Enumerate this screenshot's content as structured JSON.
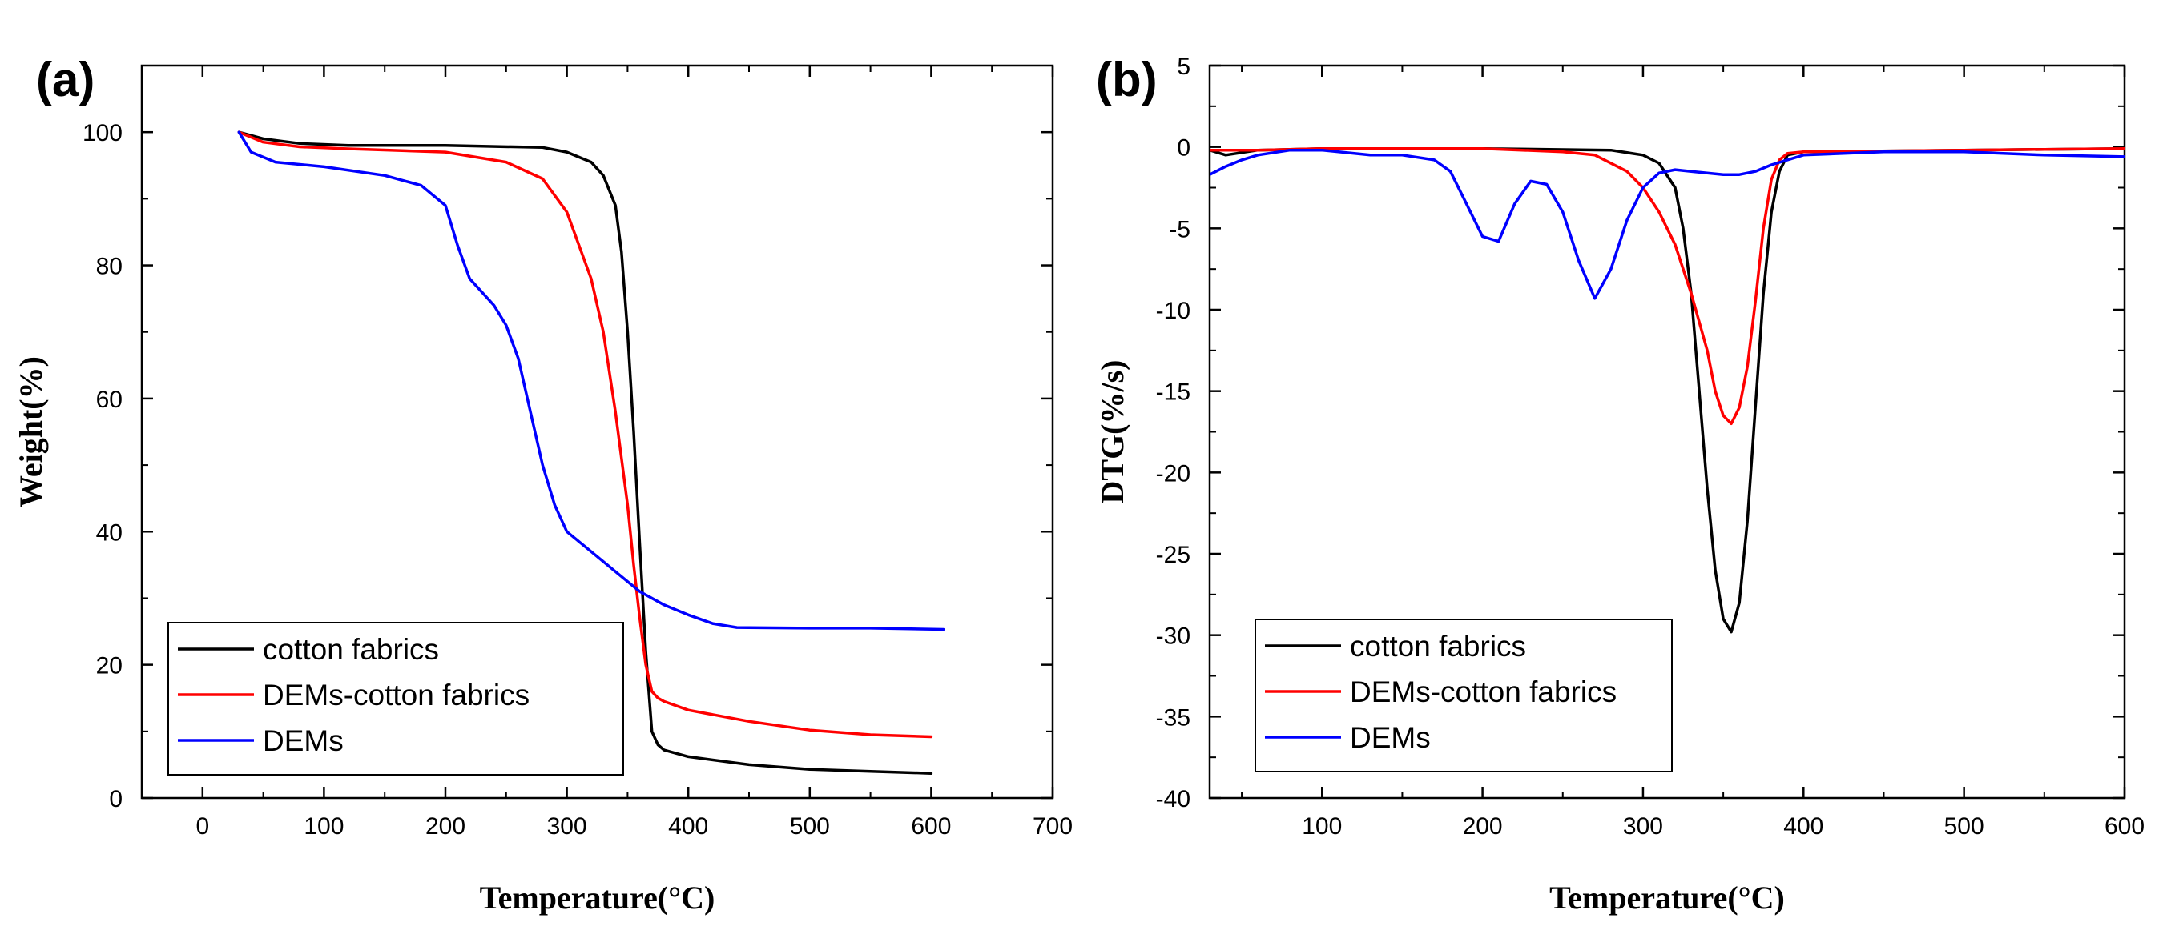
{
  "chart_data": [
    {
      "panel_label": "(a)",
      "type": "line",
      "title": "",
      "xlabel": "Temperature(°C)",
      "ylabel": "Weight(%)",
      "xlim": [
        -50,
        700
      ],
      "ylim": [
        0,
        110
      ],
      "x_ticks": [
        0,
        100,
        200,
        300,
        400,
        500,
        600,
        700
      ],
      "y_ticks": [
        0,
        20,
        40,
        60,
        80,
        100
      ],
      "x_tick_labels": [
        "0",
        "100",
        "200",
        "300",
        "400",
        "500",
        "600",
        "700"
      ],
      "y_tick_labels": [
        "0",
        "20",
        "40",
        "60",
        "80",
        "100"
      ],
      "legend_position": "bottom-left",
      "series": [
        {
          "name": "cotton fabrics",
          "color": "#000000",
          "x": [
            30,
            50,
            80,
            120,
            200,
            280,
            300,
            320,
            330,
            340,
            345,
            350,
            355,
            360,
            365,
            370,
            375,
            380,
            400,
            450,
            500,
            550,
            600
          ],
          "y": [
            100,
            99,
            98.3,
            98,
            98,
            97.7,
            97,
            95.5,
            93.5,
            89,
            82,
            70,
            55,
            38,
            22,
            10,
            8,
            7.2,
            6.2,
            5,
            4.3,
            4,
            3.7
          ]
        },
        {
          "name": "DEMs-cotton fabrics",
          "color": "#ff0000",
          "x": [
            30,
            50,
            80,
            120,
            200,
            250,
            280,
            300,
            320,
            330,
            340,
            350,
            355,
            360,
            365,
            370,
            375,
            380,
            400,
            450,
            500,
            550,
            600
          ],
          "y": [
            100,
            98.5,
            97.8,
            97.5,
            97,
            95.5,
            93,
            88,
            78,
            70,
            58,
            44,
            35,
            27,
            20,
            16,
            15,
            14.5,
            13.2,
            11.5,
            10.2,
            9.5,
            9.2
          ]
        },
        {
          "name": "DEMs",
          "color": "#0000ff",
          "x": [
            30,
            40,
            60,
            100,
            150,
            180,
            200,
            210,
            220,
            240,
            250,
            260,
            270,
            280,
            290,
            300,
            320,
            340,
            360,
            380,
            400,
            420,
            440,
            500,
            550,
            610
          ],
          "y": [
            100,
            97,
            95.5,
            94.8,
            93.5,
            92,
            89,
            83,
            78,
            74,
            71,
            66,
            58,
            50,
            44,
            40,
            37,
            34,
            31,
            29,
            27.5,
            26.2,
            25.6,
            25.5,
            25.5,
            25.3
          ]
        }
      ]
    },
    {
      "panel_label": "(b)",
      "type": "line",
      "title": "",
      "xlabel": "Temperature(°C)",
      "ylabel": "DTG(%/s)",
      "xlim": [
        30,
        600
      ],
      "ylim": [
        -40,
        5
      ],
      "x_ticks": [
        100,
        200,
        300,
        400,
        500,
        600
      ],
      "y_ticks": [
        5,
        0,
        -5,
        -10,
        -15,
        -20,
        -25,
        -30,
        -35,
        -40
      ],
      "x_tick_labels": [
        "100",
        "200",
        "300",
        "400",
        "500",
        "600"
      ],
      "y_tick_labels": [
        "5",
        "0",
        "-5",
        "-10",
        "-15",
        "-20",
        "-25",
        "-30",
        "-35",
        "-40"
      ],
      "legend_position": "bottom-left",
      "series": [
        {
          "name": "cotton fabrics",
          "color": "#000000",
          "x": [
            30,
            40,
            60,
            100,
            200,
            280,
            300,
            310,
            320,
            325,
            330,
            335,
            340,
            345,
            350,
            355,
            360,
            365,
            370,
            375,
            380,
            385,
            390,
            400,
            500,
            600
          ],
          "y": [
            -0.2,
            -0.5,
            -0.2,
            -0.1,
            -0.1,
            -0.2,
            -0.5,
            -1,
            -2.5,
            -5,
            -9,
            -15,
            -21,
            -26,
            -29,
            -29.8,
            -28,
            -23,
            -16,
            -9,
            -4,
            -1.5,
            -0.5,
            -0.3,
            -0.2,
            -0.1
          ],
          "min_label": "-30"
        },
        {
          "name": "DEMs-cotton fabrics",
          "color": "#ff0000",
          "x": [
            30,
            60,
            100,
            150,
            200,
            250,
            270,
            290,
            300,
            310,
            320,
            330,
            340,
            345,
            350,
            355,
            360,
            365,
            370,
            375,
            380,
            385,
            390,
            400,
            500,
            600
          ],
          "y": [
            -0.2,
            -0.2,
            -0.1,
            -0.1,
            -0.1,
            -0.3,
            -0.5,
            -1.5,
            -2.5,
            -4,
            -6,
            -9,
            -12.5,
            -15,
            -16.5,
            -17,
            -16,
            -13.5,
            -9.5,
            -5,
            -2,
            -0.8,
            -0.4,
            -0.3,
            -0.2,
            -0.1
          ]
        },
        {
          "name": "DEMs",
          "color": "#0000ff",
          "x": [
            30,
            40,
            50,
            60,
            80,
            100,
            130,
            150,
            170,
            180,
            190,
            200,
            210,
            220,
            230,
            240,
            250,
            260,
            270,
            280,
            290,
            300,
            310,
            320,
            330,
            340,
            350,
            360,
            370,
            380,
            400,
            450,
            500,
            550,
            600
          ],
          "y": [
            -1.7,
            -1.2,
            -0.8,
            -0.5,
            -0.2,
            -0.2,
            -0.5,
            -0.5,
            -0.8,
            -1.5,
            -3.5,
            -5.5,
            -5.8,
            -3.5,
            -2.1,
            -2.3,
            -4,
            -7,
            -9.3,
            -7.5,
            -4.5,
            -2.5,
            -1.6,
            -1.4,
            -1.5,
            -1.6,
            -1.7,
            -1.7,
            -1.5,
            -1.1,
            -0.5,
            -0.3,
            -0.3,
            -0.5,
            -0.6
          ]
        }
      ]
    }
  ]
}
